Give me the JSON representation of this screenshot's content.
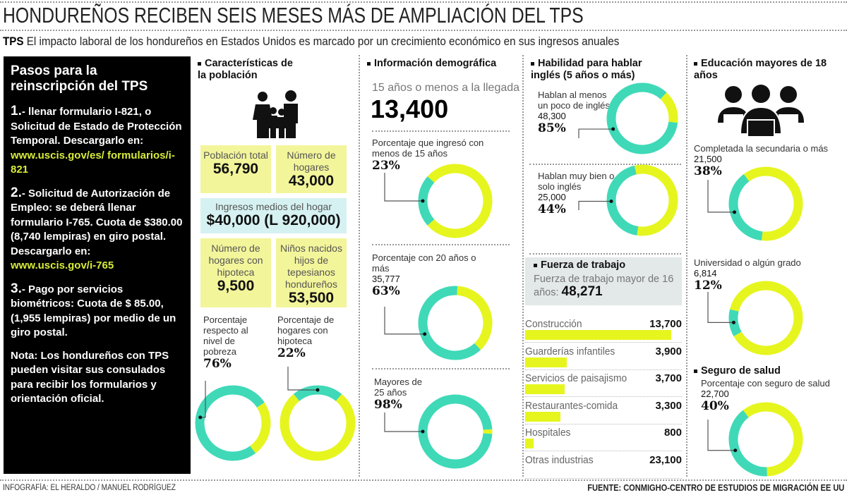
{
  "header": {
    "title": "HONDUREÑOS RECIBEN SEIS MESES MÁS DE AMPLIACIÓN DEL TPS",
    "subtitle_bold": "TPS",
    "subtitle": "El impacto laboral de los hondureños en Estados Unidos es marcado por un crecimiento económico en sus ingresos anuales"
  },
  "steps": {
    "title": "Pasos para la reinscripción del TPS",
    "items": [
      {
        "num": "1.",
        "text": "- llenar formulario I-821, o  Solicitud de Estado de Protección Temporal. Descargarlo en:",
        "link": "www.uscis.gov/es/ formularios/i-821"
      },
      {
        "num": "2.",
        "text": "- Solicitud de Autorización de Empleo: se deberá llenar formulario I-765. Cuota de $380.00 (8,740 lempiras) en giro postal. Descargarlo en:",
        "link": "www.uscis.gov/i-765"
      },
      {
        "num": "3.",
        "text": "- Pago por servicios biométricos: Cuota de $ 85.00, (1,955 lempiras) por medio de un giro postal.",
        "link": ""
      }
    ],
    "note": "Nota: Los hondureños con TPS pueden visitar sus consulados para recibir los formularios y orientación oficial."
  },
  "poblacion": {
    "title": "Características de la población",
    "icon": "family-icon",
    "boxes": [
      {
        "label": "Población total",
        "value": "56,790"
      },
      {
        "label": "Número de hogares",
        "value": "43,000"
      },
      {
        "label": "Ingresos medios del hogar",
        "value": "$40,000 (L 920,000)"
      },
      {
        "label": "Número de hogares con hipoteca",
        "value": "9,500"
      },
      {
        "label": "Niños nacidos hijos de tepesianos hondureños",
        "value": "53,500"
      }
    ]
  },
  "demografia": {
    "title": "Información demográfica",
    "llegada_label": "15 años o menos a la llegada",
    "llegada_value": "13,400"
  },
  "ingles": {
    "title": "Habilidad para hablar inglés (5 años o más)"
  },
  "fuerza": {
    "title": "Fuerza de trabajo",
    "label": "Fuerza de trabajo mayor de 16 años:",
    "value": "48,271"
  },
  "educacion": {
    "title": "Educación mayores de 18 años",
    "icon": "students-laptop-icon"
  },
  "salud": {
    "title": "Seguro de salud"
  },
  "colors": {
    "teal": "#3fd9b8",
    "yellow": "#e6f51e",
    "box_yellow": "#f3f59b",
    "box_blue": "#d6f1f1",
    "box_gray": "#e3e8e8"
  },
  "chart_data": [
    {
      "type": "pie",
      "style": "donut",
      "id": "pobreza",
      "label": "Porcentaje respecto al nivel de pobreza",
      "count": "",
      "percent_label": "76%",
      "values": [
        76,
        24
      ]
    },
    {
      "type": "pie",
      "style": "donut",
      "id": "hipoteca",
      "label": "Porcentaje de hogares con hipoteca",
      "count": "",
      "percent_label": "22%",
      "values": [
        22,
        78
      ]
    },
    {
      "type": "pie",
      "style": "donut",
      "id": "menos15",
      "label": "Porcentaje que ingresó con menos de 15 años",
      "count": "",
      "percent_label": "23%",
      "values": [
        23,
        77
      ]
    },
    {
      "type": "pie",
      "style": "donut",
      "id": "mas20",
      "label": "Porcentaje con 20 años o más",
      "count": "35,777",
      "percent_label": "63%",
      "values": [
        63,
        37
      ]
    },
    {
      "type": "pie",
      "style": "donut",
      "id": "mayores25",
      "label": "Mayores de 25 años",
      "count": "",
      "percent_label": "98%",
      "values": [
        98,
        2
      ]
    },
    {
      "type": "pie",
      "style": "donut",
      "id": "poco_ingles",
      "label": "Hablan al menos un poco de inglés",
      "count": "48,300",
      "percent_label": "85%",
      "values": [
        85,
        15
      ]
    },
    {
      "type": "pie",
      "style": "donut",
      "id": "muy_bien",
      "label": "Hablan muy bien o solo inglés",
      "count": "25,000",
      "percent_label": "44%",
      "values": [
        44,
        56
      ]
    },
    {
      "type": "pie",
      "style": "donut",
      "id": "secundaria",
      "label": "Completada la secundaria o más",
      "count": "21,500",
      "percent_label": "38%",
      "values": [
        38,
        62
      ]
    },
    {
      "type": "pie",
      "style": "donut",
      "id": "universidad",
      "label": "Universidad o algún grado",
      "count": "6,814",
      "percent_label": "12%",
      "values": [
        12,
        88
      ]
    },
    {
      "type": "pie",
      "style": "donut",
      "id": "seguro",
      "label": "Porcentaje con seguro de salud",
      "count": "22,700",
      "percent_label": "40%",
      "values": [
        40,
        60
      ]
    },
    {
      "type": "bar",
      "orientation": "horizontal",
      "id": "industrias",
      "categories": [
        "Construcción",
        "Guarderías infantiles",
        "Servicios de paisajismo",
        "Restaurantes-comida",
        "Hospitales",
        "Otras industrias"
      ],
      "values": [
        13700,
        3900,
        3700,
        3300,
        800,
        23100
      ],
      "value_labels": [
        "13,700",
        "3,900",
        "3,700",
        "3,300",
        "800",
        "23,100"
      ],
      "bars_drawn": [
        true,
        true,
        true,
        true,
        true,
        false
      ]
    }
  ],
  "footer": {
    "credit": "INFOGRAFÍA: EL HERALDO / MANUEL RODRÍGUEZ",
    "source": "FUENTE: CONMIGHO-CENTRO DE ESTUDIOS DE MIGRACIÓN EE UU"
  }
}
